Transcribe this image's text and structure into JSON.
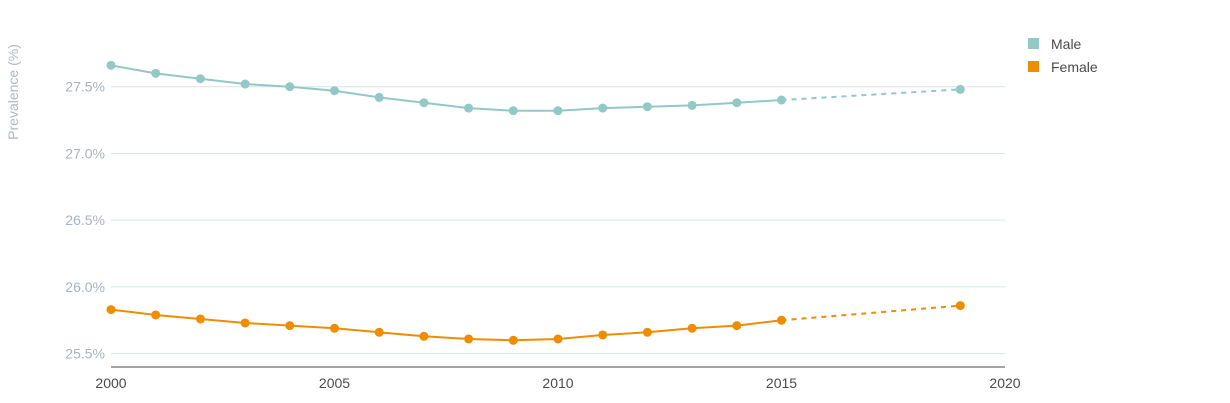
{
  "chart_data": {
    "type": "line",
    "ylabel": "Prevalence (%)",
    "xlim": [
      2000,
      2020
    ],
    "ylim": [
      25.4,
      27.85
    ],
    "x_ticks": [
      "2000",
      "2005",
      "2010",
      "2015",
      "2020"
    ],
    "y_ticks": [
      "25.5%",
      "26.0%",
      "26.5%",
      "27.0%",
      "27.5%"
    ],
    "grid": true,
    "legend_position": "top-right",
    "series": [
      {
        "name": "Male",
        "color": "#92c8c5",
        "x": [
          2000,
          2001,
          2002,
          2003,
          2004,
          2005,
          2006,
          2007,
          2008,
          2009,
          2010,
          2011,
          2012,
          2013,
          2014,
          2015,
          2019
        ],
        "values": [
          27.66,
          27.6,
          27.56,
          27.52,
          27.5,
          27.47,
          27.42,
          27.38,
          27.34,
          27.32,
          27.32,
          27.34,
          27.35,
          27.36,
          27.38,
          27.4,
          27.48
        ],
        "projected_from_index": 15
      },
      {
        "name": "Female",
        "color": "#ef8c00",
        "x": [
          2000,
          2001,
          2002,
          2003,
          2004,
          2005,
          2006,
          2007,
          2008,
          2009,
          2010,
          2011,
          2012,
          2013,
          2014,
          2015,
          2019
        ],
        "values": [
          25.83,
          25.79,
          25.76,
          25.73,
          25.71,
          25.69,
          25.66,
          25.63,
          25.61,
          25.6,
          25.61,
          25.64,
          25.66,
          25.69,
          25.71,
          25.75,
          25.86
        ],
        "projected_from_index": 15
      }
    ]
  }
}
